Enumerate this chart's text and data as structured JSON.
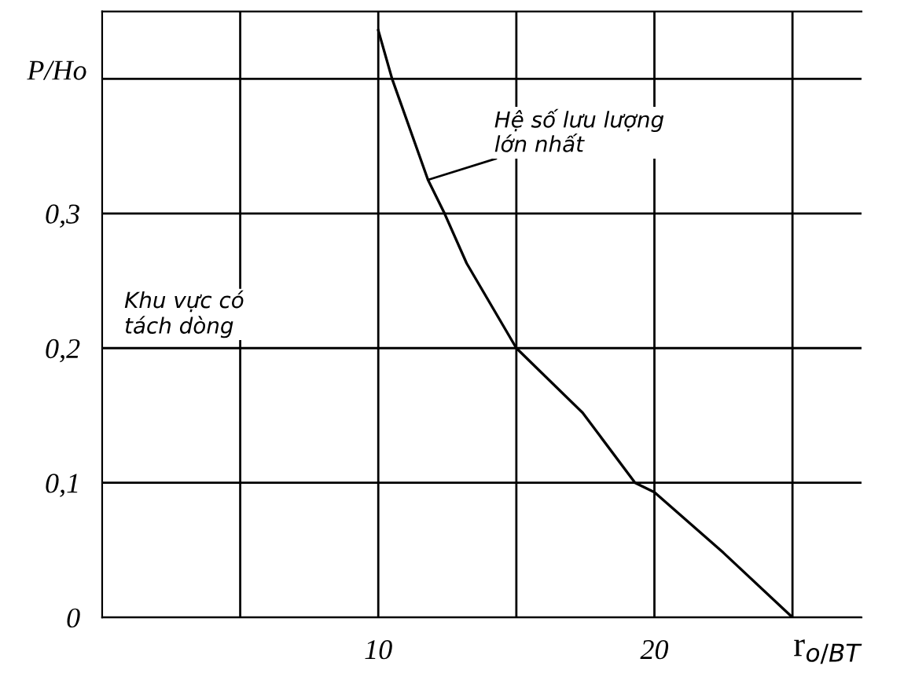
{
  "chart_data": {
    "type": "line",
    "xlabel": "r$_{o/BT}$",
    "ylabel": "P/Ho",
    "x": [
      10,
      10.5,
      11.8,
      12.4,
      13.2,
      15,
      17.4,
      19.3,
      20,
      22.5,
      25
    ],
    "series": [
      {
        "color": "#000000",
        "values": [
          0.436,
          0.4,
          0.325,
          0.3,
          0.263,
          0.2,
          0.152,
          0.1,
          0.093,
          0.048,
          0
        ]
      }
    ],
    "xlim": [
      0,
      27.5
    ],
    "ylim": [
      0,
      0.45
    ],
    "xticks": [
      {
        "value": 5,
        "label": null
      },
      10,
      {
        "value": 15,
        "label": null
      },
      20,
      {
        "value": 25,
        "label": null
      }
    ],
    "yticks": [
      {
        "value": 0,
        "label": "0"
      },
      {
        "value": 0.1,
        "label": "0,1"
      },
      {
        "value": 0.2,
        "label": "0,2"
      },
      {
        "value": 0.3,
        "label": "0,3"
      },
      {
        "value": 0.4,
        "label": null
      }
    ],
    "grid": true,
    "marker": "none",
    "line_style": "solid",
    "annotations": [
      "Khu vực có\ntách dòng",
      {
        "text": "Hệ số lưu lượng\nlớn nhất",
        "x": 11.8,
        "y": 0.325
      }
    ]
  }
}
